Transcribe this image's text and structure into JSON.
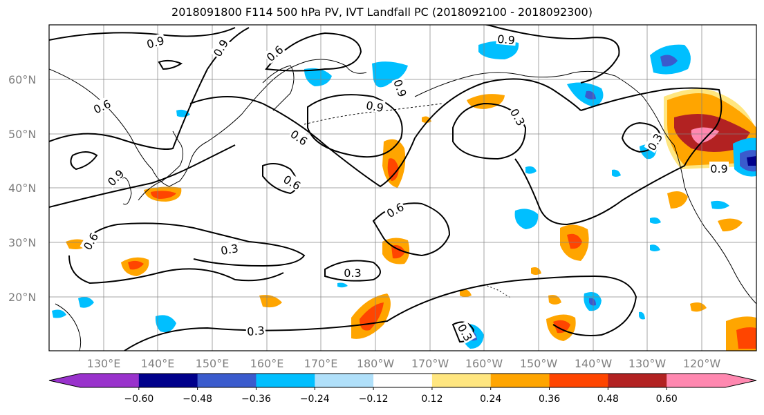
{
  "title": "2018091800 F114 500 hPa PV, IVT Landfall PC (2018092100 - 2018092300)",
  "map": {
    "lat_ticks": [
      "60°N",
      "50°N",
      "40°N",
      "30°N",
      "20°N"
    ],
    "lon_ticks": [
      "130°E",
      "140°E",
      "150°E",
      "160°E",
      "170°E",
      "180°W",
      "170°W",
      "160°W",
      "150°W",
      "140°W",
      "130°W",
      "120°W"
    ],
    "contour_labels": [
      "0.9",
      "0.9",
      "0.6",
      "0.9",
      "0.6",
      "0.9",
      "0.6",
      "0.9",
      "0.3",
      "0.6",
      "0.9",
      "0.6",
      "0.6",
      "0.3",
      "0.3",
      "0.3",
      "0.3",
      "0.3",
      "0.9"
    ]
  },
  "colorbar": {
    "tick_labels": [
      "−0.60",
      "−0.48",
      "−0.36",
      "−0.24",
      "−0.12",
      "0.12",
      "0.24",
      "0.36",
      "0.48",
      "0.60"
    ],
    "colors": [
      "#9932cc",
      "#00008b",
      "#3a5bcd",
      "#00bfff",
      "#b0e0fa",
      "#ffffff",
      "#ffe680",
      "#ffa500",
      "#ff4500",
      "#b22222",
      "#ff88b0",
      "#ffffff"
    ]
  },
  "colors": {
    "land_outline": "#000000",
    "grid": "#808080"
  }
}
